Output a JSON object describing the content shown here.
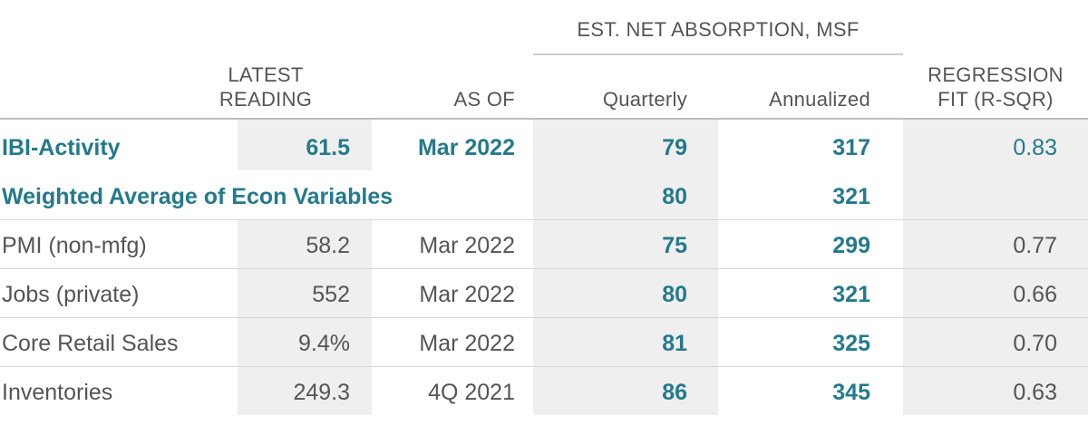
{
  "header": {
    "group_label": "EST. NET ABSORPTION, MSF",
    "columns": {
      "latest_line1": "LATEST",
      "latest_line2": "READING",
      "as_of": "AS OF",
      "quarterly": "Quarterly",
      "annualized": "Annualized",
      "regression_line1": "REGRESSION",
      "regression_line2": "FIT (R-SQR)"
    }
  },
  "colors": {
    "accent": "#247a8c",
    "text": "#555555",
    "band": "#efefef"
  },
  "chart_data": {
    "type": "table",
    "columns": [
      "",
      "LATEST READING",
      "AS OF",
      "Quarterly",
      "Annualized",
      "REGRESSION FIT (R-SQR)"
    ],
    "rows": [
      {
        "name": "IBI-Activity",
        "latest": "61.5",
        "as_of": "Mar 2022",
        "quarterly": "79",
        "annualized": "317",
        "r2": "0.83"
      },
      {
        "name": "Weighted Average of Econ Variables",
        "latest": "",
        "as_of": "",
        "quarterly": "80",
        "annualized": "321",
        "r2": ""
      },
      {
        "name": "PMI (non-mfg)",
        "latest": "58.2",
        "as_of": "Mar 2022",
        "quarterly": "75",
        "annualized": "299",
        "r2": "0.77"
      },
      {
        "name": "Jobs (private)",
        "latest": "552",
        "as_of": "Mar 2022",
        "quarterly": "80",
        "annualized": "321",
        "r2": "0.66"
      },
      {
        "name": "Core Retail Sales",
        "latest": "9.4%",
        "as_of": "Mar 2022",
        "quarterly": "81",
        "annualized": "325",
        "r2": "0.70"
      },
      {
        "name": "Inventories",
        "latest": "249.3",
        "as_of": "4Q 2021",
        "quarterly": "86",
        "annualized": "345",
        "r2": "0.63"
      }
    ]
  }
}
